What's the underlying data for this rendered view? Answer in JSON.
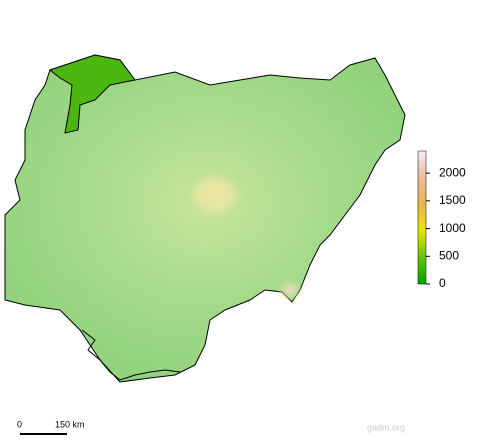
{
  "legend": {
    "lim": [
      0,
      2400
    ],
    "ticks": [
      0,
      500,
      1000,
      1500,
      2000
    ],
    "colors": [
      "#00a600",
      "#63c600",
      "#e6e600",
      "#eab64e",
      "#eeb99f",
      "#f2f2f2"
    ]
  },
  "scale_bar": {
    "start": "0",
    "end": "150 km"
  },
  "watermark": "gadm.org"
}
